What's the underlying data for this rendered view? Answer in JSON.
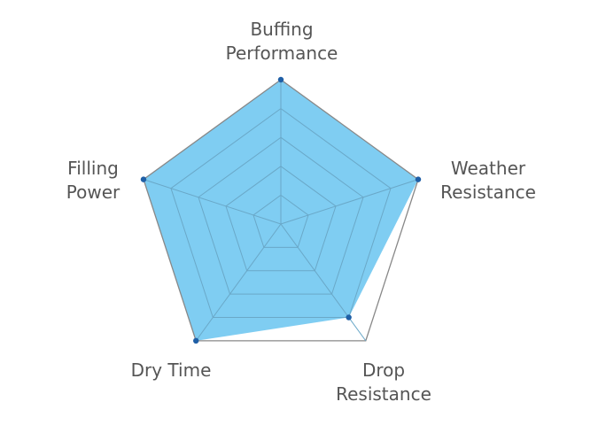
{
  "chart_data": {
    "type": "radar",
    "categories": [
      "Buffing Performance",
      "Weather Resistance",
      "Drop Resistance",
      "Dry Time",
      "Filling Power"
    ],
    "series": [
      {
        "color": "#7fcdf2",
        "values": [
          5,
          5,
          4,
          5,
          5
        ]
      }
    ],
    "rlim": [
      0,
      5
    ],
    "rticks": [
      1,
      2,
      3,
      4,
      5
    ],
    "grid": true
  }
}
